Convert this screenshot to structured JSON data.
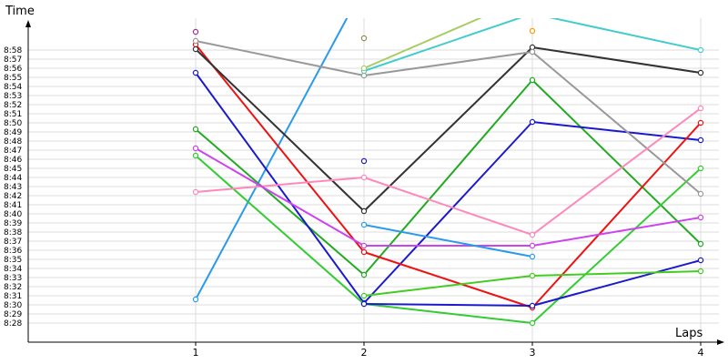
{
  "chart_data": {
    "type": "line",
    "xlabel": "Laps",
    "ylabel": "Time",
    "x": [
      1,
      2,
      3,
      4
    ],
    "y_ticks": [
      "8:28",
      "8:29",
      "8:30",
      "8:31",
      "8:32",
      "8:33",
      "8:34",
      "8:35",
      "8:36",
      "8:37",
      "8:38",
      "8:39",
      "8:40",
      "8:41",
      "8:42",
      "8:43",
      "8:44",
      "8:45",
      "8:46",
      "8:47",
      "8:48",
      "8:49",
      "8:50",
      "8:51",
      "8:52",
      "8:53",
      "8:54",
      "8:55",
      "8:56",
      "8:57",
      "8:58"
    ],
    "x_ticks": [
      "1",
      "2",
      "3",
      "4"
    ],
    "grid": true,
    "ylim_seconds": [
      507,
      541
    ],
    "series": [
      {
        "color": "#2a9bea",
        "values": [
          "8:30.6",
          "9:05",
          null,
          null
        ]
      },
      {
        "color": "#22aa22",
        "values": [
          "8:49.3",
          "8:33.3",
          "8:54.7",
          "8:36.7"
        ]
      },
      {
        "color": "#1a1acc",
        "values": [
          "8:55.5",
          "8:30.2",
          "8:50.1",
          "8:48.1"
        ]
      },
      {
        "color": "#33cc33",
        "values": [
          "8:46.4",
          "8:30.1",
          "8:28.0",
          "8:45.0"
        ]
      },
      {
        "color": "#ee1111",
        "values": [
          "8:58.6",
          "8:35.8",
          "8:29.7",
          "8:50.0"
        ]
      },
      {
        "color": "#333333",
        "values": [
          "8:58.1",
          "8:40.3",
          "8:58.3",
          "8:55.5"
        ]
      },
      {
        "color": "#999999",
        "values": [
          "8:59.0",
          "8:55.2",
          "8:57.8",
          "8:42.2"
        ]
      },
      {
        "color": "#ff88bb",
        "values": [
          "8:42.4",
          "8:44.0",
          "8:37.7",
          "8:51.6"
        ]
      },
      {
        "color": "#cc44ee",
        "values": [
          "8:47.2",
          "8:36.5",
          "8:36.5",
          "8:39.6"
        ]
      },
      {
        "color": "#2a9bea",
        "values": [
          null,
          "8:38.8",
          "8:35.3",
          null
        ]
      },
      {
        "color": "#1a1acc",
        "values": [
          null,
          "8:45.8",
          null,
          null
        ]
      },
      {
        "color": "#1a1acc",
        "values": [
          null,
          "8:30.1",
          "8:29.9",
          "8:34.9"
        ]
      },
      {
        "color": "#44cc22",
        "values": [
          null,
          "8:31.0",
          "8:33.2",
          "8:33.7"
        ]
      },
      {
        "color": "#44cccc",
        "values": [
          null,
          "8:55.7",
          "9:02",
          "8:58.0"
        ]
      },
      {
        "color": "#aacc66",
        "values": [
          null,
          "8:56.0",
          "9:04",
          null
        ]
      },
      {
        "color": "#998855",
        "values": [
          null,
          "8:59.3",
          null,
          null
        ]
      },
      {
        "color": "#993399",
        "values": [
          "9:00",
          null,
          null,
          null
        ]
      },
      {
        "color": "#ff9900",
        "values": [
          null,
          null,
          "9:00.1",
          null
        ]
      }
    ]
  }
}
